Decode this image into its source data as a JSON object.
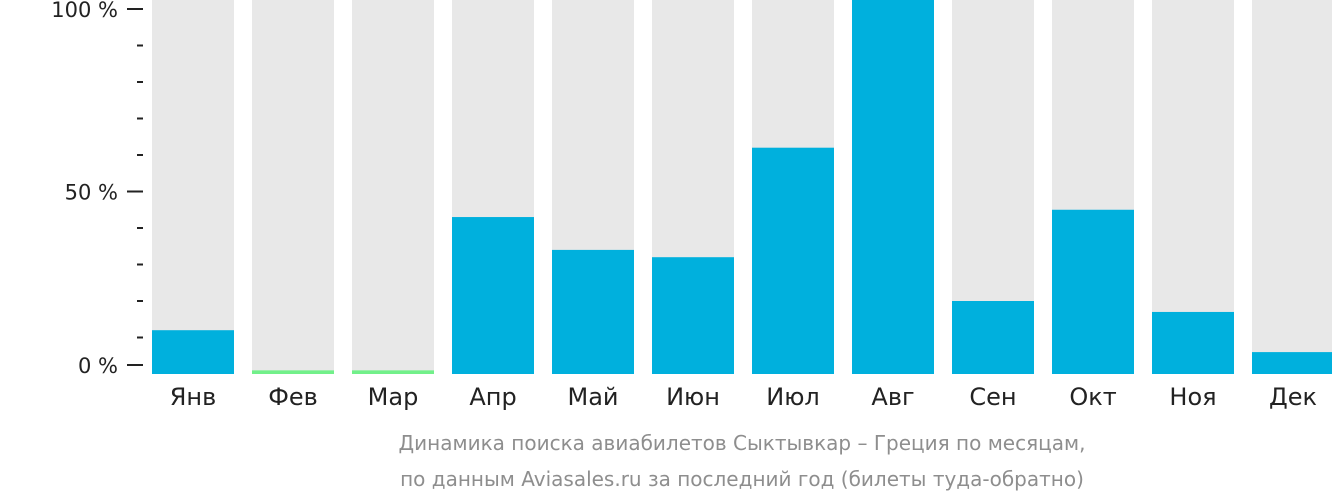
{
  "chart_data": {
    "type": "bar",
    "categories": [
      "Янв",
      "Фев",
      "Мар",
      "Апр",
      "Май",
      "Июн",
      "Июл",
      "Авг",
      "Сен",
      "Окт",
      "Ноя",
      "Дек"
    ],
    "values": [
      12,
      1,
      1,
      43,
      34,
      32,
      62,
      100,
      20,
      45,
      17,
      6
    ],
    "ylim": [
      0,
      100
    ],
    "ytick_labels": [
      "100 %",
      "50 %",
      "0 %"
    ],
    "ytick_values": [
      100,
      50,
      0
    ],
    "colors": {
      "bar": "#00b0dd",
      "bar_low": "#72f08a",
      "background_bar": "#e8e8e8",
      "axis": "#222222",
      "caption": "#8e8e8e"
    },
    "low_highlight_months": [
      "Фев",
      "Мар"
    ]
  },
  "caption": {
    "line1": "Динамика поиска авиабилетов Сыктывкар – Греция по месяцам,",
    "line2": "по данным Aviasales.ru за последний год (билеты туда-обратно)"
  }
}
